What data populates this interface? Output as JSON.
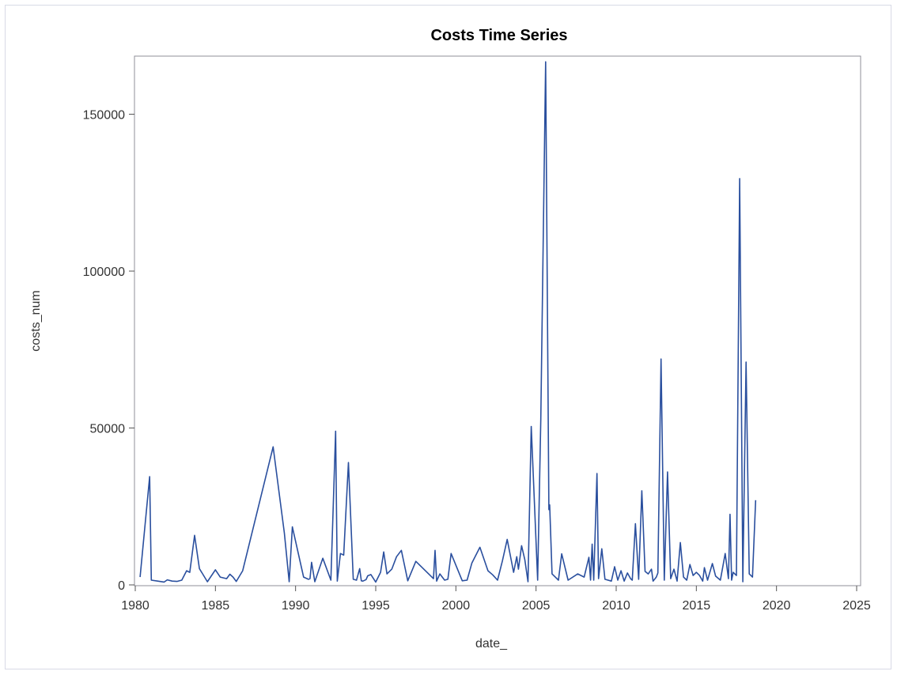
{
  "chart_data": {
    "type": "line",
    "title": "Costs Time Series",
    "xlabel": "date_",
    "ylabel": "costs_num",
    "xlim": [
      1980,
      2025
    ],
    "ylim": [
      0,
      167000
    ],
    "x_ticks": [
      1980,
      1985,
      1990,
      1995,
      2000,
      2005,
      2010,
      2015,
      2020,
      2025
    ],
    "y_ticks": [
      0,
      50000,
      100000,
      150000
    ],
    "grid": false,
    "legend": "none",
    "series_color": "#2a4f9e",
    "series": [
      {
        "x": [
          1980.3,
          1980.9,
          1981.0,
          1981.4,
          1981.8,
          1982.0,
          1982.3,
          1982.6,
          1982.9,
          1983.2,
          1983.4,
          1983.7,
          1984.0,
          1984.5,
          1985.0,
          1985.3,
          1985.7,
          1985.9,
          1986.1,
          1986.3,
          1986.7,
          1988.6,
          1989.3,
          1989.6,
          1989.8,
          1990.5,
          1990.8,
          1990.9,
          1991.0,
          1991.2,
          1991.7,
          1992.2,
          1992.5,
          1992.6,
          1992.8,
          1993.0,
          1993.3,
          1993.6,
          1993.8,
          1994.0,
          1994.1,
          1994.2,
          1994.4,
          1994.5,
          1994.7,
          1995.0,
          1995.3,
          1995.5,
          1995.7,
          1996.0,
          1996.3,
          1996.6,
          1997.0,
          1997.5,
          1998.1,
          1998.6,
          1998.7,
          1998.8,
          1999.0,
          1999.3,
          1999.5,
          1999.7,
          2000.4,
          2000.7,
          2001.0,
          2001.5,
          2002.0,
          2002.3,
          2002.6,
          2002.9,
          2003.2,
          2003.6,
          2003.8,
          2003.9,
          2004.1,
          2004.3,
          2004.5,
          2004.7,
          2005.1,
          2005.3,
          2005.6,
          2005.8,
          2005.85,
          2006.0,
          2006.2,
          2006.4,
          2006.6,
          2007.0,
          2007.6,
          2008.0,
          2008.3,
          2008.4,
          2008.5,
          2008.6,
          2008.8,
          2008.9,
          2009.1,
          2009.3,
          2009.7,
          2009.9,
          2010.1,
          2010.3,
          2010.5,
          2010.7,
          2010.9,
          2011.0,
          2011.2,
          2011.4,
          2011.6,
          2011.8,
          2012.0,
          2012.2,
          2012.3,
          2012.5,
          2012.6,
          2012.8,
          2013.0,
          2013.2,
          2013.4,
          2013.6,
          2013.8,
          2014.0,
          2014.2,
          2014.4,
          2014.6,
          2014.8,
          2015.0,
          2015.2,
          2015.4,
          2015.5,
          2015.7,
          2016.0,
          2016.2,
          2016.5,
          2016.8,
          2017.0,
          2017.1,
          2017.2,
          2017.3,
          2017.5,
          2017.7,
          2017.9,
          2018.1,
          2018.3,
          2018.5,
          2018.7
        ],
        "y": [
          2500,
          34500,
          1500,
          1200,
          900,
          1600,
          1200,
          1100,
          1500,
          4500,
          4000,
          15800,
          5200,
          1000,
          4800,
          2500,
          2000,
          3400,
          2500,
          1100,
          4500,
          44000,
          16500,
          1000,
          18500,
          2500,
          1800,
          2000,
          7200,
          1000,
          8500,
          1500,
          49000,
          1200,
          10000,
          9500,
          39000,
          1800,
          1500,
          5200,
          1300,
          1200,
          1700,
          2900,
          3300,
          900,
          4000,
          10500,
          3500,
          5000,
          9000,
          11000,
          1300,
          7500,
          4500,
          2000,
          11000,
          1200,
          3500,
          1500,
          1800,
          10000,
          1300,
          1500,
          7000,
          12000,
          4500,
          3200,
          1500,
          7600,
          14500,
          4000,
          9000,
          5000,
          12500,
          8000,
          1000,
          50500,
          1500,
          53000,
          166700,
          24000,
          25500,
          3500,
          2500,
          1500,
          9900,
          1500,
          3500,
          2500,
          8800,
          1500,
          13000,
          1500,
          35500,
          2000,
          11500,
          1800,
          1200,
          5800,
          1500,
          4500,
          1200,
          3800,
          2000,
          1500,
          19500,
          1800,
          30000,
          4300,
          3500,
          5000,
          1200,
          2500,
          3800,
          72000,
          1500,
          36000,
          2000,
          5000,
          1200,
          13500,
          2500,
          1500,
          6500,
          3000,
          4000,
          3000,
          1200,
          5500,
          1500,
          6800,
          2800,
          1500,
          10000,
          2000,
          22500,
          1500,
          4000,
          3000,
          129500,
          1000,
          71000,
          3500,
          2500,
          27000
        ]
      }
    ]
  }
}
